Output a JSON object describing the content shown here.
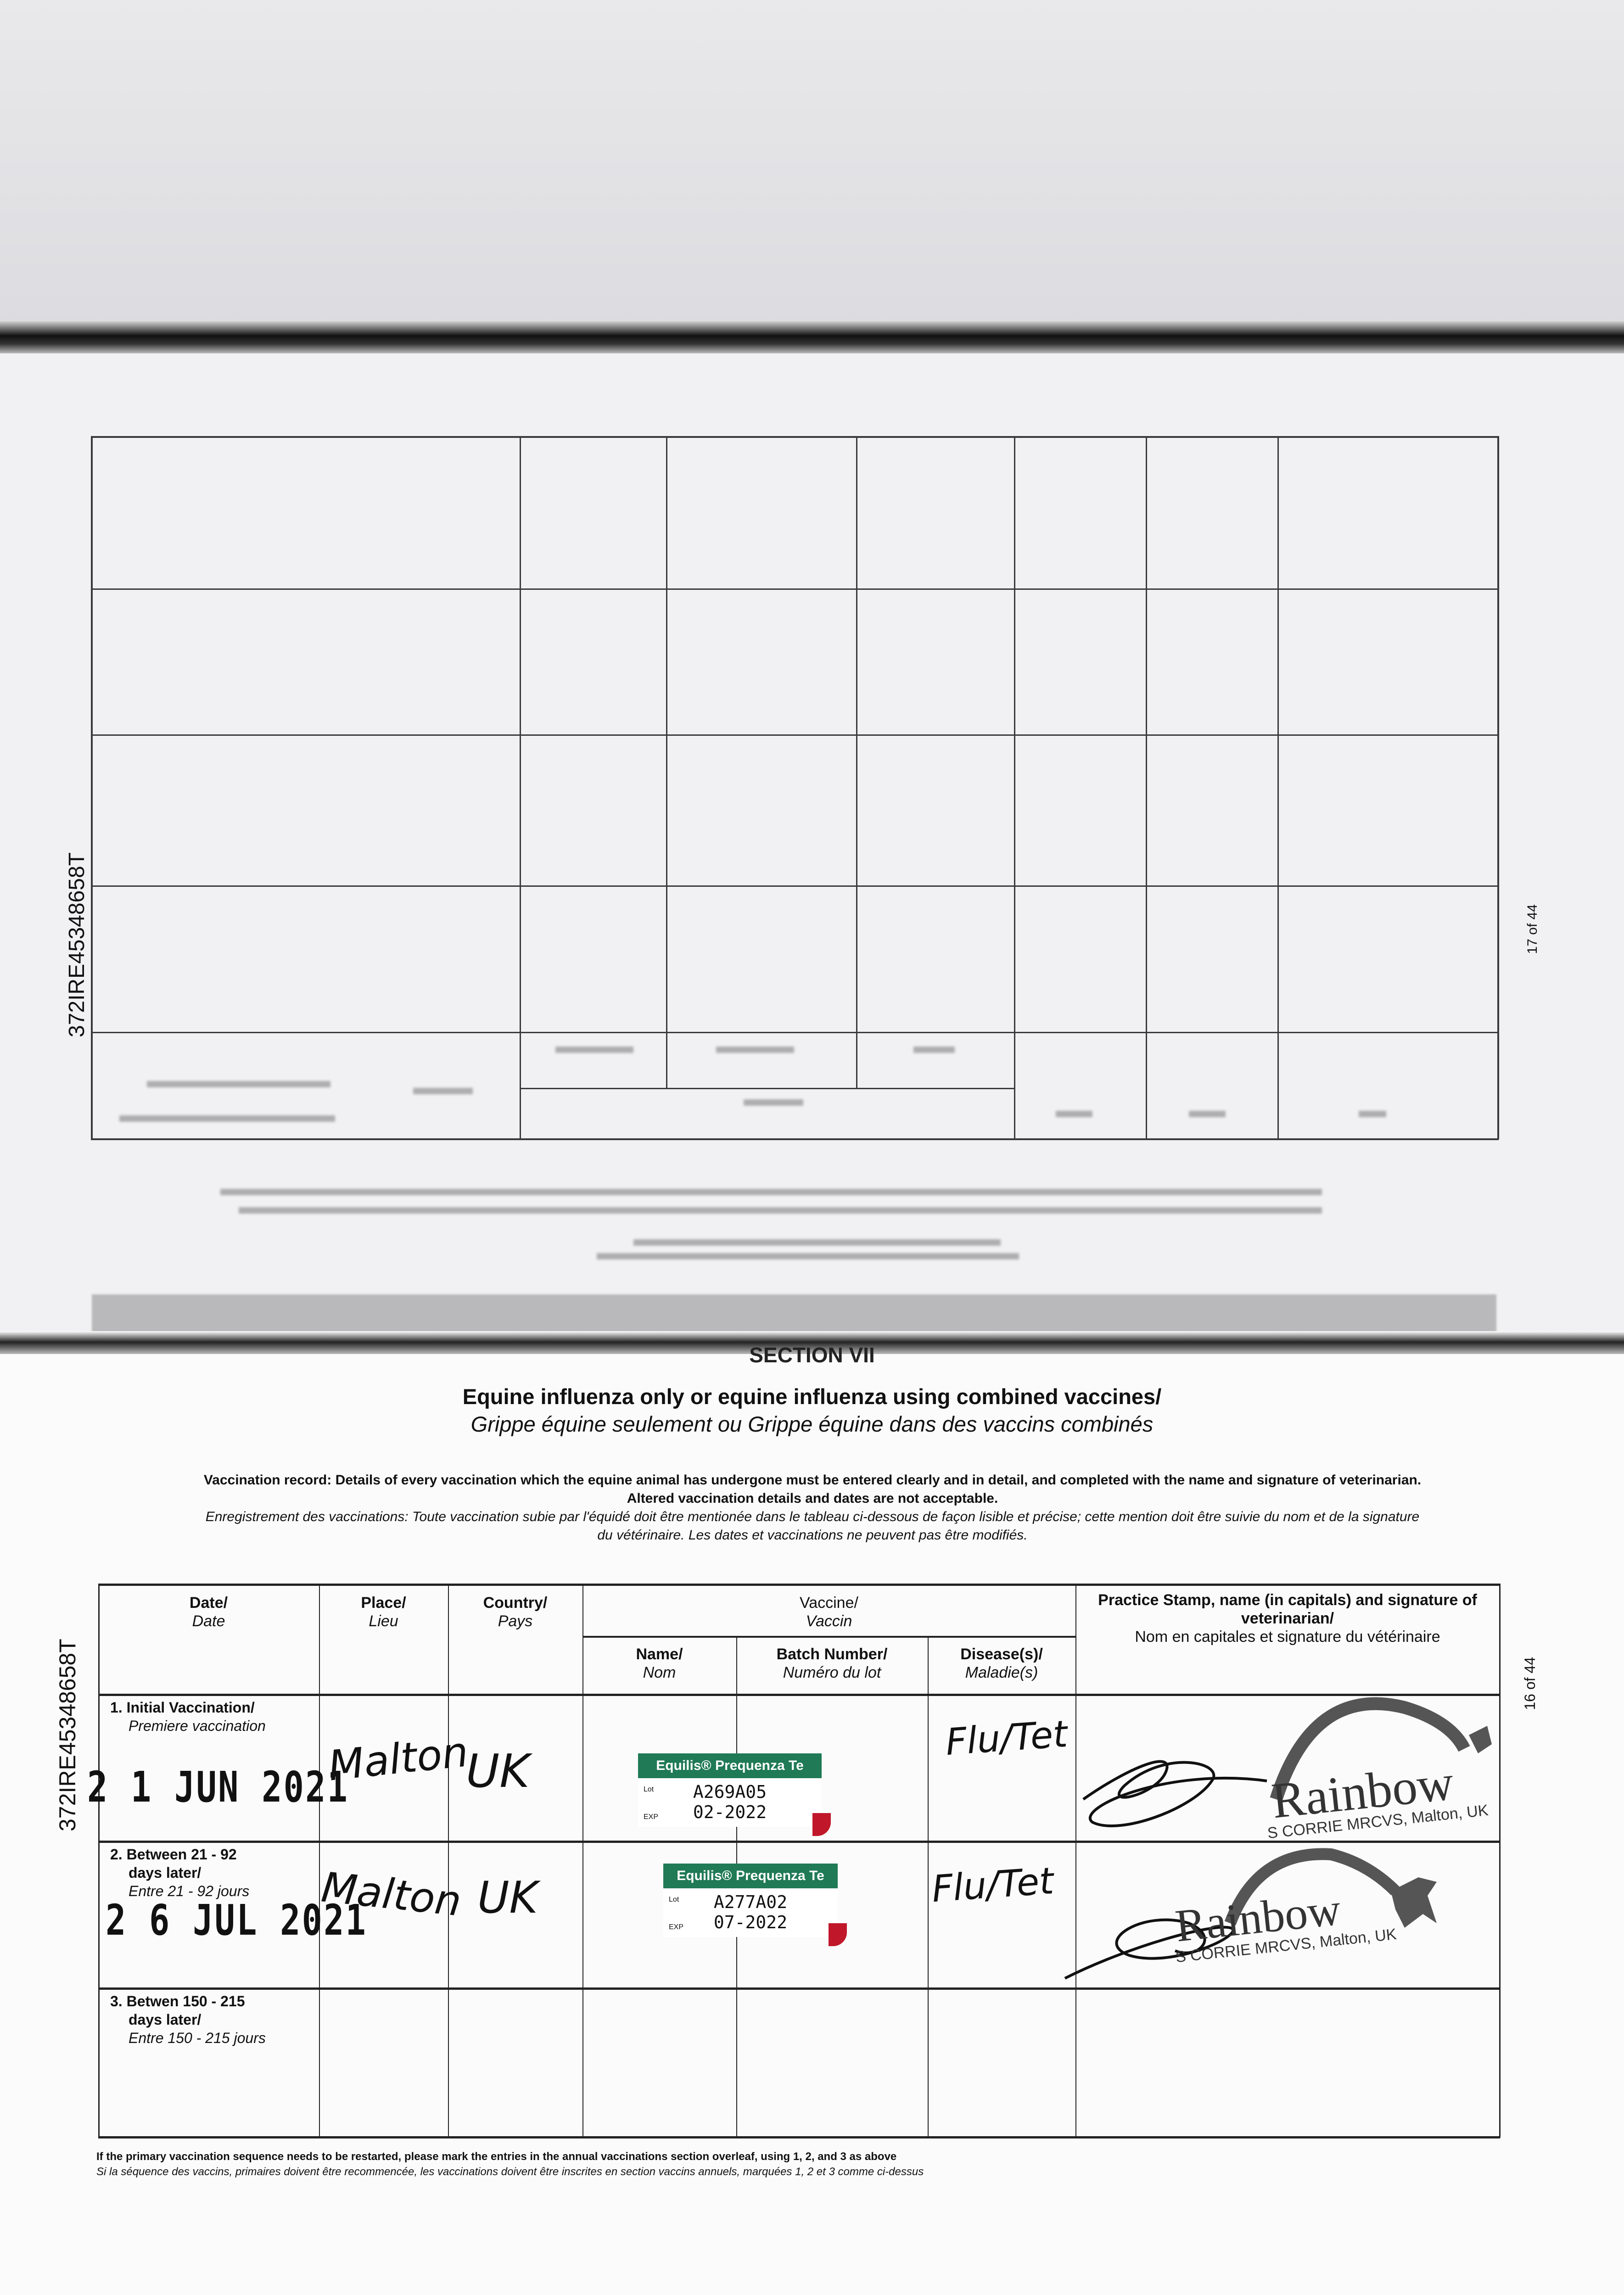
{
  "previous_page": {
    "identifier": "372IRE45348658T",
    "page_number": "17 of 44"
  },
  "section": {
    "number": "SECTION VII",
    "title_en": "Equine influenza only or equine influenza using combined vaccines/",
    "title_fr": "Grippe équine seulement ou Grippe équine dans des vaccins combinés",
    "instructions_en_1": "Vaccination record: Details of every vaccination which the equine animal has undergone must be entered clearly and in detail, and completed with the name and signature of veterinarian.",
    "instructions_en_2": "Altered vaccination details and dates are not acceptable.",
    "instructions_fr_1": "Enregistrement des vaccinations: Toute vaccination subie par l'équidé doit être mentionée dans le tableau ci-dessous de façon lisible et précise; cette mention doit être suivie du nom et de la signature",
    "instructions_fr_2": "du vétérinaire. Les dates et vaccinations ne peuvent pas être modifiés."
  },
  "page": {
    "identifier": "372IRE45348658T",
    "page_number": "16 of 44"
  },
  "table": {
    "headers": {
      "date": {
        "en": "Date/",
        "fr": "Date"
      },
      "place": {
        "en": "Place/",
        "fr": "Lieu"
      },
      "country": {
        "en": "Country/",
        "fr": "Pays"
      },
      "vaccine": {
        "en": "Vaccine/",
        "fr": "Vaccin"
      },
      "name": {
        "en": "Name/",
        "fr": "Nom"
      },
      "batch": {
        "en": "Batch Number/",
        "fr": "Numéro du lot"
      },
      "disease": {
        "en": "Disease(s)/",
        "fr": "Maladie(s)"
      },
      "vet": {
        "en": "Practice Stamp, name (in capitals) and signature of veterinarian/",
        "fr": "Nom en capitales et signature du vétérinaire"
      }
    },
    "rows": [
      {
        "label_en_1": "1. Initial Vaccination/",
        "label_en_2": "",
        "label_fr": "Premiere vaccination",
        "date": "2 1 JUN 2021",
        "place": "Malton",
        "country": "UK",
        "vaccine_label": {
          "name": "Equilis® Prequenza Te",
          "lot_tag": "Lot",
          "exp_tag": "EXP",
          "lot": "A269A05",
          "exp": "02-2022"
        },
        "disease": "Flu/Tet",
        "stamp": {
          "logo": "Rainbow",
          "text": "S CORRIE MRCVS, Malton, UK"
        }
      },
      {
        "label_en_1": "2. Between 21 - 92",
        "label_en_2": "days later/",
        "label_fr": "Entre 21 - 92 jours",
        "date": "2 6 JUL 2021",
        "place": "Malton",
        "country": "UK",
        "vaccine_label": {
          "name": "Equilis® Prequenza Te",
          "lot_tag": "Lot",
          "exp_tag": "EXP",
          "lot": "A277A02",
          "exp": "07-2022"
        },
        "disease": "Flu/Tet",
        "stamp": {
          "logo": "Rainbow",
          "text": "S CORRIE MRCVS, Malton, UK"
        }
      },
      {
        "label_en_1": "3. Betwen 150 - 215",
        "label_en_2": "days later/",
        "label_fr": "Entre 150 - 215 jours"
      }
    ]
  },
  "footer": {
    "en": "If the primary vaccination sequence needs to be restarted, please mark the entries in the annual vaccinations section overleaf, using 1, 2, and 3 as above",
    "fr": "Si la séquence des vaccins, primaires doivent être recommencée, les vaccinations doivent être inscrites en section vaccins annuels, marquées 1, 2 et 3 comme ci-dessus"
  },
  "colors": {
    "label_green": "#1f7a55",
    "label_red": "#c0182a",
    "stamp_grey": "#555555"
  }
}
